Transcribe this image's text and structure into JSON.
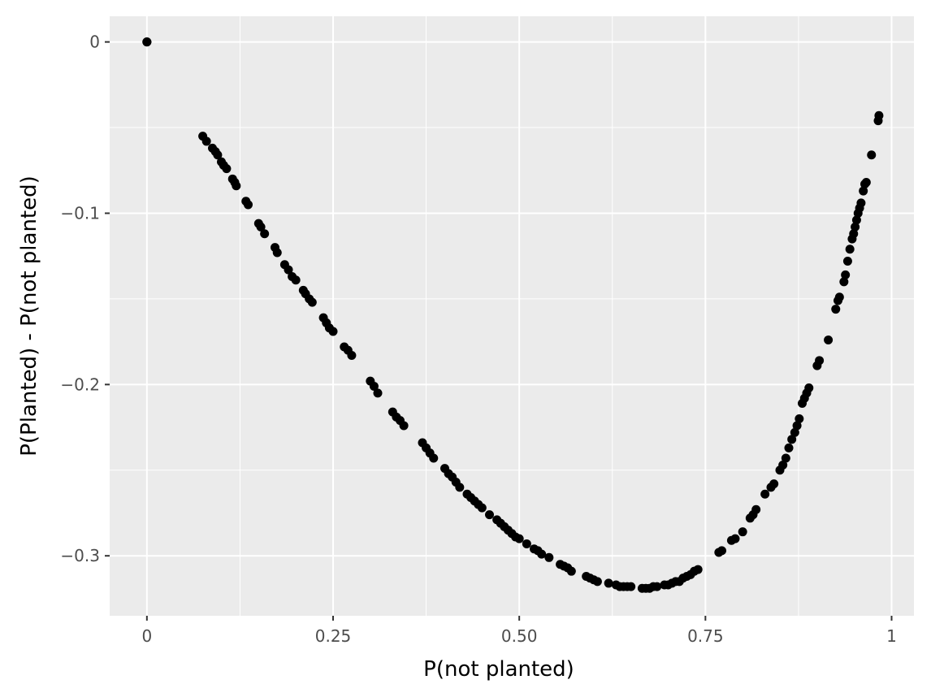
{
  "chart_data": {
    "type": "scatter",
    "title": "",
    "xlabel": "P(not planted)",
    "ylabel": "P(Planted) - P(not planted)",
    "xlim": [
      -0.05,
      1.03
    ],
    "ylim": [
      -0.335,
      0.015
    ],
    "x_ticks": [
      {
        "value": 0,
        "label": "0"
      },
      {
        "value": 0.25,
        "label": "0.25"
      },
      {
        "value": 0.5,
        "label": "0.50"
      },
      {
        "value": 0.75,
        "label": "0.75"
      },
      {
        "value": 1,
        "label": "1"
      }
    ],
    "y_ticks": [
      {
        "value": 0,
        "label": "0"
      },
      {
        "value": -0.1,
        "label": "−0.1"
      },
      {
        "value": -0.2,
        "label": "−0.2"
      },
      {
        "value": -0.3,
        "label": "−0.3"
      }
    ],
    "grid": true,
    "colors": {
      "panel": "#ebebeb",
      "grid": "#ffffff",
      "point": "#000000"
    },
    "series": [
      {
        "points": [
          [
            0.0,
            0.0
          ],
          [
            0.0,
            0.0
          ],
          [
            0.0,
            0.0
          ],
          [
            0.075,
            -0.055
          ],
          [
            0.08,
            -0.058
          ],
          [
            0.088,
            -0.062
          ],
          [
            0.092,
            -0.064
          ],
          [
            0.095,
            -0.066
          ],
          [
            0.1,
            -0.07
          ],
          [
            0.103,
            -0.072
          ],
          [
            0.107,
            -0.074
          ],
          [
            0.115,
            -0.08
          ],
          [
            0.118,
            -0.082
          ],
          [
            0.12,
            -0.084
          ],
          [
            0.133,
            -0.093
          ],
          [
            0.136,
            -0.095
          ],
          [
            0.15,
            -0.106
          ],
          [
            0.153,
            -0.108
          ],
          [
            0.158,
            -0.112
          ],
          [
            0.172,
            -0.12
          ],
          [
            0.175,
            -0.123
          ],
          [
            0.185,
            -0.13
          ],
          [
            0.19,
            -0.133
          ],
          [
            0.195,
            -0.137
          ],
          [
            0.2,
            -0.139
          ],
          [
            0.21,
            -0.145
          ],
          [
            0.213,
            -0.147
          ],
          [
            0.218,
            -0.15
          ],
          [
            0.222,
            -0.152
          ],
          [
            0.237,
            -0.161
          ],
          [
            0.241,
            -0.164
          ],
          [
            0.245,
            -0.167
          ],
          [
            0.25,
            -0.169
          ],
          [
            0.265,
            -0.178
          ],
          [
            0.27,
            -0.18
          ],
          [
            0.275,
            -0.183
          ],
          [
            0.3,
            -0.198
          ],
          [
            0.305,
            -0.201
          ],
          [
            0.31,
            -0.205
          ],
          [
            0.33,
            -0.216
          ],
          [
            0.335,
            -0.219
          ],
          [
            0.34,
            -0.221
          ],
          [
            0.345,
            -0.224
          ],
          [
            0.37,
            -0.234
          ],
          [
            0.375,
            -0.237
          ],
          [
            0.38,
            -0.24
          ],
          [
            0.385,
            -0.243
          ],
          [
            0.4,
            -0.249
          ],
          [
            0.405,
            -0.252
          ],
          [
            0.41,
            -0.254
          ],
          [
            0.415,
            -0.257
          ],
          [
            0.42,
            -0.26
          ],
          [
            0.43,
            -0.264
          ],
          [
            0.435,
            -0.266
          ],
          [
            0.44,
            -0.268
          ],
          [
            0.445,
            -0.27
          ],
          [
            0.45,
            -0.272
          ],
          [
            0.46,
            -0.276
          ],
          [
            0.47,
            -0.279
          ],
          [
            0.475,
            -0.281
          ],
          [
            0.48,
            -0.283
          ],
          [
            0.485,
            -0.285
          ],
          [
            0.49,
            -0.287
          ],
          [
            0.495,
            -0.289
          ],
          [
            0.5,
            -0.29
          ],
          [
            0.51,
            -0.293
          ],
          [
            0.52,
            -0.296
          ],
          [
            0.525,
            -0.297
          ],
          [
            0.53,
            -0.299
          ],
          [
            0.54,
            -0.301
          ],
          [
            0.555,
            -0.305
          ],
          [
            0.56,
            -0.306
          ],
          [
            0.565,
            -0.307
          ],
          [
            0.57,
            -0.309
          ],
          [
            0.59,
            -0.312
          ],
          [
            0.595,
            -0.313
          ],
          [
            0.6,
            -0.314
          ],
          [
            0.605,
            -0.315
          ],
          [
            0.62,
            -0.316
          ],
          [
            0.63,
            -0.317
          ],
          [
            0.635,
            -0.318
          ],
          [
            0.64,
            -0.318
          ],
          [
            0.645,
            -0.318
          ],
          [
            0.65,
            -0.318
          ],
          [
            0.665,
            -0.319
          ],
          [
            0.67,
            -0.319
          ],
          [
            0.675,
            -0.319
          ],
          [
            0.68,
            -0.318
          ],
          [
            0.685,
            -0.318
          ],
          [
            0.695,
            -0.317
          ],
          [
            0.7,
            -0.317
          ],
          [
            0.705,
            -0.316
          ],
          [
            0.71,
            -0.315
          ],
          [
            0.715,
            -0.315
          ],
          [
            0.72,
            -0.313
          ],
          [
            0.725,
            -0.312
          ],
          [
            0.73,
            -0.311
          ],
          [
            0.735,
            -0.309
          ],
          [
            0.74,
            -0.308
          ],
          [
            0.768,
            -0.298
          ],
          [
            0.772,
            -0.297
          ],
          [
            0.785,
            -0.291
          ],
          [
            0.79,
            -0.29
          ],
          [
            0.8,
            -0.286
          ],
          [
            0.81,
            -0.278
          ],
          [
            0.814,
            -0.276
          ],
          [
            0.818,
            -0.273
          ],
          [
            0.83,
            -0.264
          ],
          [
            0.838,
            -0.26
          ],
          [
            0.842,
            -0.258
          ],
          [
            0.85,
            -0.25
          ],
          [
            0.854,
            -0.247
          ],
          [
            0.858,
            -0.243
          ],
          [
            0.862,
            -0.237
          ],
          [
            0.866,
            -0.232
          ],
          [
            0.87,
            -0.228
          ],
          [
            0.873,
            -0.224
          ],
          [
            0.876,
            -0.22
          ],
          [
            0.88,
            -0.211
          ],
          [
            0.883,
            -0.208
          ],
          [
            0.886,
            -0.205
          ],
          [
            0.889,
            -0.202
          ],
          [
            0.9,
            -0.189
          ],
          [
            0.903,
            -0.186
          ],
          [
            0.915,
            -0.174
          ],
          [
            0.925,
            -0.156
          ],
          [
            0.928,
            -0.151
          ],
          [
            0.93,
            -0.149
          ],
          [
            0.936,
            -0.14
          ],
          [
            0.938,
            -0.136
          ],
          [
            0.941,
            -0.128
          ],
          [
            0.944,
            -0.121
          ],
          [
            0.947,
            -0.115
          ],
          [
            0.949,
            -0.112
          ],
          [
            0.951,
            -0.108
          ],
          [
            0.953,
            -0.104
          ],
          [
            0.955,
            -0.1
          ],
          [
            0.957,
            -0.097
          ],
          [
            0.959,
            -0.094
          ],
          [
            0.962,
            -0.087
          ],
          [
            0.964,
            -0.083
          ],
          [
            0.966,
            -0.082
          ],
          [
            0.973,
            -0.066
          ],
          [
            0.982,
            -0.046
          ],
          [
            0.983,
            -0.043
          ]
        ]
      }
    ]
  }
}
